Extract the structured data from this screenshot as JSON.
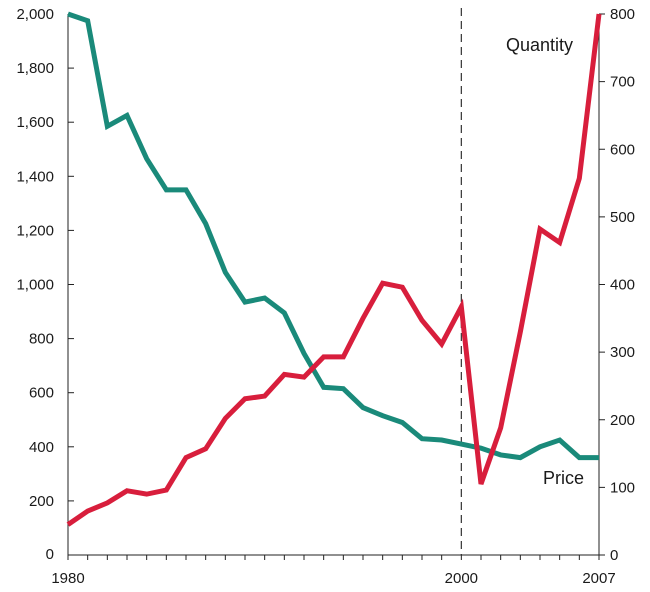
{
  "chart_data": {
    "type": "line",
    "title": "",
    "xlabel": "",
    "ylabel_left": "",
    "ylabel_right": "",
    "x": [
      1980,
      1981,
      1982,
      1983,
      1984,
      1985,
      1986,
      1987,
      1988,
      1989,
      1990,
      1991,
      1992,
      1993,
      1994,
      1995,
      1996,
      1997,
      1998,
      1999,
      2000,
      2001,
      2002,
      2003,
      2004,
      2005,
      2006,
      2007
    ],
    "x_ticks": [
      "1980",
      "2000",
      "2007"
    ],
    "xlim": [
      1980,
      2007
    ],
    "left_axis": {
      "ylim": [
        0,
        2000
      ],
      "ticks": [
        "0",
        "200",
        "400",
        "600",
        "800",
        "1,000",
        "1,200",
        "1,400",
        "1,600",
        "1,800",
        "2,000"
      ]
    },
    "right_axis": {
      "ylim": [
        0,
        800
      ],
      "ticks": [
        "0",
        "100",
        "200",
        "300",
        "400",
        "500",
        "600",
        "700",
        "800"
      ]
    },
    "series": [
      {
        "name": "Price",
        "axis": "left",
        "color": "#1a8a7a",
        "values": [
          2000,
          1975,
          1585,
          1625,
          1465,
          1350,
          1350,
          1225,
          1045,
          935,
          950,
          895,
          745,
          620,
          615,
          545,
          515,
          490,
          430,
          425,
          410,
          395,
          370,
          360,
          400,
          425,
          360,
          360
        ]
      },
      {
        "name": "Quantity",
        "axis": "right",
        "color": "#d81e3c",
        "values": [
          45,
          65,
          77,
          95,
          90,
          96,
          144,
          157,
          202,
          231,
          235,
          267,
          263,
          293,
          293,
          350,
          402,
          396,
          347,
          312,
          367,
          105,
          188,
          330,
          482,
          462,
          557,
          800
        ]
      }
    ],
    "annotations": [
      {
        "type": "vertical-dashed-line",
        "x": 2000
      }
    ],
    "grid": false,
    "legend": "inline-labels"
  },
  "labels": {
    "quantity": "Quantity",
    "price": "Price"
  }
}
